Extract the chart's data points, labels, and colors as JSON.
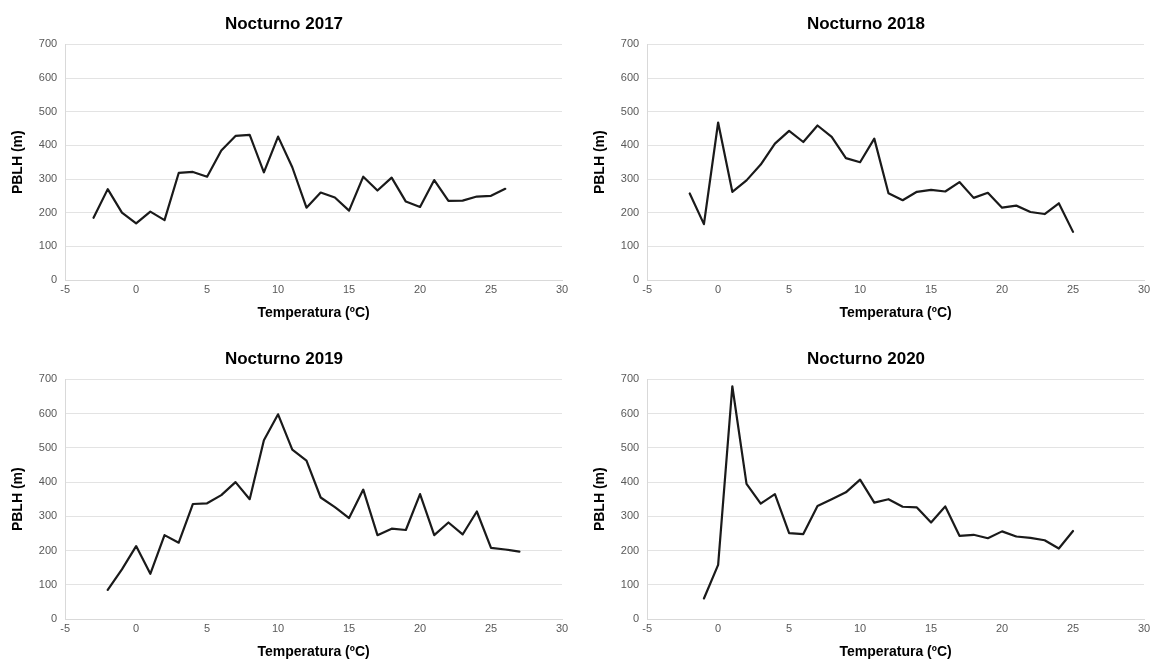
{
  "chart_data": [
    {
      "type": "line",
      "title": "Nocturno 2017",
      "xlabel": "Temperatura (ºC)",
      "ylabel": "PBLH (m)",
      "x": [
        -3,
        -2,
        -1,
        0,
        1,
        2,
        3,
        4,
        5,
        6,
        7,
        8,
        9,
        10,
        11,
        12,
        13,
        14,
        15,
        16,
        17,
        18,
        19,
        20,
        21,
        22,
        23,
        24,
        25,
        26
      ],
      "series": [
        {
          "color": "#1a1a1a",
          "values": [
            185,
            270,
            200,
            168,
            203,
            178,
            318,
            321,
            307,
            385,
            428,
            431,
            320,
            426,
            335,
            215,
            260,
            245,
            206,
            307,
            266,
            304,
            233,
            217,
            297,
            235,
            236,
            248,
            250,
            271
          ]
        }
      ],
      "xlim": [
        -5,
        30
      ],
      "xticks": [
        -5,
        0,
        5,
        10,
        15,
        20,
        25,
        30
      ],
      "ylim": [
        0,
        700
      ],
      "yticks": [
        0,
        100,
        200,
        300,
        400,
        500,
        600,
        700
      ],
      "grid": "y",
      "marker": "none",
      "line_style": "solid"
    },
    {
      "type": "line",
      "title": "Nocturno 2018",
      "xlabel": "Temperatura (ºC)",
      "ylabel": "PBLH (m)",
      "x": [
        -2,
        -1,
        0,
        1,
        2,
        3,
        4,
        5,
        6,
        7,
        8,
        9,
        10,
        11,
        12,
        13,
        14,
        15,
        16,
        17,
        18,
        19,
        20,
        21,
        22,
        23,
        24,
        25
      ],
      "series": [
        {
          "color": "#1a1a1a",
          "values": [
            257,
            166,
            468,
            262,
            296,
            343,
            405,
            443,
            410,
            459,
            425,
            362,
            350,
            420,
            258,
            237,
            262,
            268,
            263,
            291,
            244,
            259,
            215,
            221,
            202,
            196,
            228,
            143
          ]
        }
      ],
      "xlim": [
        -5,
        30
      ],
      "xticks": [
        -5,
        0,
        5,
        10,
        15,
        20,
        25,
        30
      ],
      "ylim": [
        0,
        700
      ],
      "yticks": [
        0,
        100,
        200,
        300,
        400,
        500,
        600,
        700
      ],
      "grid": "y",
      "marker": "none",
      "line_style": "solid"
    },
    {
      "type": "line",
      "title": "Nocturno 2019",
      "xlabel": "Temperatura (ºC)",
      "ylabel": "PBLH (m)",
      "x": [
        -2,
        -1,
        0,
        1,
        2,
        3,
        4,
        5,
        6,
        7,
        8,
        9,
        10,
        11,
        12,
        13,
        14,
        15,
        16,
        17,
        18,
        19,
        20,
        21,
        22,
        23,
        24,
        25,
        26,
        27
      ],
      "series": [
        {
          "color": "#1a1a1a",
          "values": [
            85,
            145,
            213,
            132,
            245,
            223,
            336,
            338,
            362,
            400,
            350,
            522,
            598,
            495,
            463,
            355,
            327,
            295,
            378,
            245,
            264,
            260,
            365,
            245,
            282,
            247,
            314,
            208,
            203,
            197
          ]
        }
      ],
      "xlim": [
        -5,
        30
      ],
      "xticks": [
        -5,
        0,
        5,
        10,
        15,
        20,
        25,
        30
      ],
      "ylim": [
        0,
        700
      ],
      "yticks": [
        0,
        100,
        200,
        300,
        400,
        500,
        600,
        700
      ],
      "grid": "y",
      "marker": "none",
      "line_style": "solid"
    },
    {
      "type": "line",
      "title": "Nocturno 2020",
      "xlabel": "Temperatura (ºC)",
      "ylabel": "PBLH (m)",
      "x": [
        -1,
        0,
        1,
        2,
        3,
        4,
        5,
        6,
        7,
        8,
        9,
        10,
        11,
        12,
        13,
        14,
        15,
        16,
        17,
        18,
        19,
        20,
        21,
        22,
        23,
        24,
        25
      ],
      "series": [
        {
          "color": "#1a1a1a",
          "values": [
            60,
            158,
            680,
            395,
            337,
            365,
            251,
            248,
            330,
            350,
            370,
            407,
            340,
            350,
            328,
            326,
            282,
            329,
            243,
            246,
            236,
            256,
            241,
            237,
            230,
            206,
            257
          ]
        }
      ],
      "xlim": [
        -5,
        30
      ],
      "xticks": [
        -5,
        0,
        5,
        10,
        15,
        20,
        25,
        30
      ],
      "ylim": [
        0,
        700
      ],
      "yticks": [
        0,
        100,
        200,
        300,
        400,
        500,
        600,
        700
      ],
      "grid": "y",
      "marker": "none",
      "line_style": "solid"
    }
  ]
}
